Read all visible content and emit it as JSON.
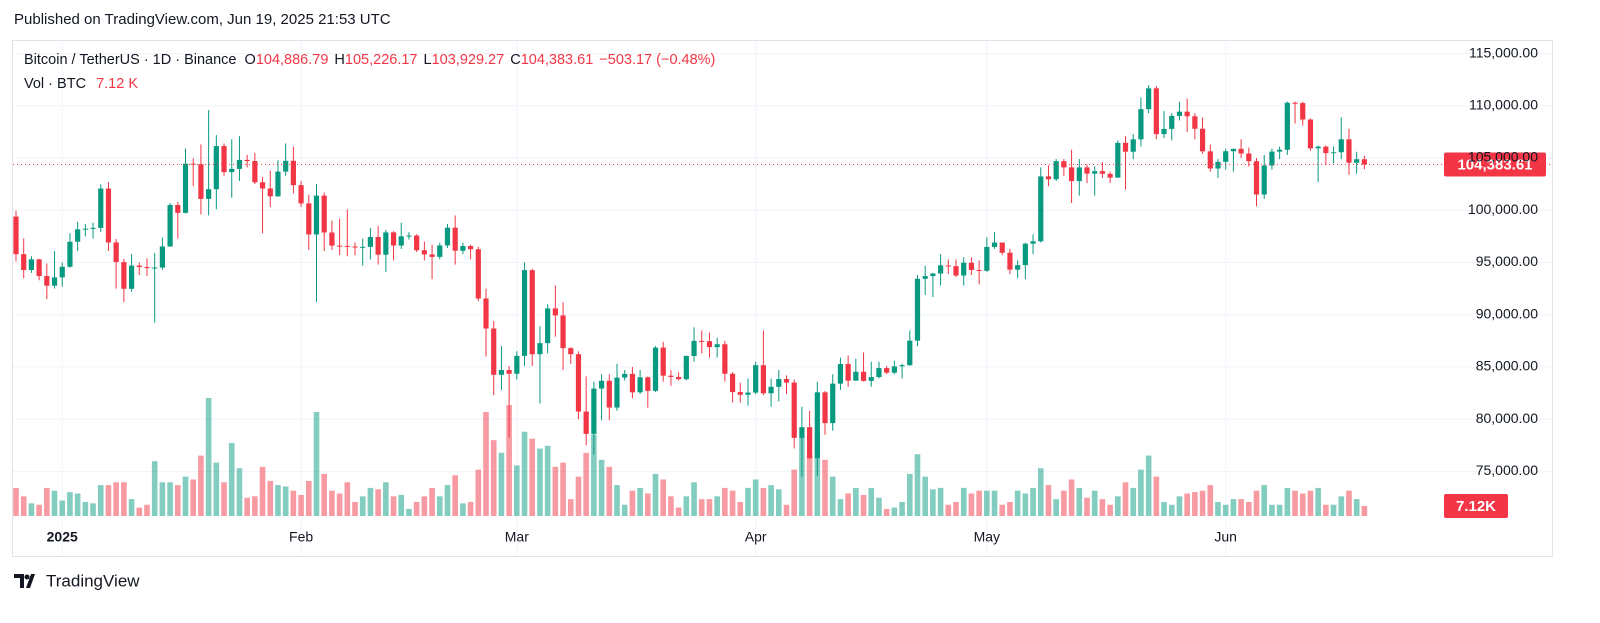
{
  "published": "Published on TradingView.com, Jun 19, 2025 21:53 UTC",
  "footer_logo": "TradingView",
  "chart_data": {
    "type": "candlestick",
    "header": {
      "symbol": "Bitcoin / TetherUS · 1D · Binance",
      "items": [
        {
          "key": "O",
          "value": "104,886.79"
        },
        {
          "key": "H",
          "value": "105,226.17"
        },
        {
          "key": "L",
          "value": "103,929.27"
        },
        {
          "key": "C",
          "value": "104,383.61"
        }
      ],
      "change": "−503.17 (−0.48%)",
      "volume_name": "Vol · BTC",
      "volume_value": "7.12 K"
    },
    "categories": [
      null,
      null,
      null,
      null,
      null,
      null,
      "2025",
      null,
      null,
      null,
      null,
      null,
      null,
      null,
      null,
      null,
      null,
      null,
      null,
      null,
      null,
      null,
      null,
      null,
      null,
      null,
      null,
      null,
      null,
      null,
      null,
      null,
      null,
      null,
      null,
      null,
      null,
      "Feb",
      null,
      null,
      null,
      null,
      null,
      null,
      null,
      null,
      null,
      null,
      null,
      null,
      null,
      null,
      null,
      null,
      null,
      null,
      null,
      null,
      null,
      null,
      null,
      null,
      null,
      null,
      null,
      "Mar",
      null,
      null,
      null,
      null,
      null,
      null,
      null,
      null,
      null,
      null,
      null,
      null,
      null,
      null,
      null,
      null,
      null,
      null,
      null,
      null,
      null,
      null,
      null,
      null,
      null,
      null,
      null,
      null,
      null,
      null,
      "Apr",
      null,
      null,
      null,
      null,
      null,
      null,
      null,
      null,
      null,
      null,
      null,
      null,
      null,
      null,
      null,
      null,
      null,
      null,
      null,
      null,
      null,
      null,
      null,
      null,
      null,
      null,
      null,
      null,
      null,
      "May",
      null,
      null,
      null,
      null,
      null,
      null,
      null,
      null,
      null,
      null,
      null,
      null,
      null,
      null,
      null,
      null,
      null,
      null,
      null,
      null,
      null,
      null,
      null,
      null,
      null,
      null,
      null,
      null,
      null,
      null,
      "Jun",
      null,
      null,
      null,
      null,
      null,
      null,
      null,
      null,
      null,
      null,
      null,
      null,
      null,
      null,
      null,
      null,
      null,
      null
    ],
    "open": [
      99400,
      95796,
      94284,
      95300,
      93700,
      92780,
      93576,
      94591,
      96984,
      98174,
      98236,
      98314,
      102078,
      96922,
      95043,
      92484,
      94701,
      94566,
      94488,
      94516,
      96534,
      100504,
      99756,
      104462,
      104408,
      101089,
      102016,
      106146,
      103653,
      103960,
      104819,
      104714,
      102682,
      102087,
      101332,
      103703,
      104735,
      102405,
      100655,
      97688,
      101405,
      97871,
      96615,
      96593,
      96529,
      96482,
      96500,
      97437,
      95748,
      97886,
      96623,
      97508,
      97580,
      96176,
      95774,
      95539,
      96635,
      98333,
      96125,
      96577,
      96273,
      91552,
      88680,
      84250,
      84708,
      84349,
      86064,
      94270,
      86220,
      87281,
      90606,
      89931,
      86802,
      86222,
      80734,
      78595,
      82932,
      83680,
      81115,
      83983,
      84338,
      82574,
      84010,
      82716,
      86854,
      84167,
      84043,
      83832,
      86054,
      87498,
      87471,
      86900,
      87177,
      84353,
      82597,
      82334,
      82548,
      85169,
      82485,
      83102,
      83843,
      83504,
      78214,
      79235,
      76271,
      82573,
      79626,
      83404,
      85287,
      83684,
      84542,
      83668,
      84033,
      84895,
      84450,
      85063,
      85174,
      87518,
      93441,
      93699,
      93944,
      94720,
      94647,
      93755,
      94978,
      94284,
      94207,
      96492,
      96911,
      95936,
      94315,
      94749,
      96802,
      97032,
      103241,
      102971,
      104696,
      104107,
      102791,
      104104,
      103508,
      103744,
      103490,
      103126,
      106455,
      105606,
      106792,
      109678,
      111673,
      107288,
      107791,
      109035,
      109440,
      108995,
      107802,
      105642,
      103998,
      104638,
      105652,
      105882,
      105432,
      104697,
      101509,
      104289,
      105615,
      105793,
      110295,
      110262,
      108686,
      105930,
      106090,
      105473,
      105555,
      106795,
      104551,
      104886.79
    ],
    "high": [
      99960,
      97300,
      95600,
      95350,
      94900,
      96100,
      95000,
      97800,
      98900,
      98700,
      98800,
      102500,
      102700,
      97250,
      95350,
      95800,
      95000,
      95400,
      95900,
      97400,
      100700,
      100800,
      105900,
      104980,
      106300,
      109588,
      107200,
      106400,
      106800,
      107100,
      105300,
      105500,
      103200,
      103800,
      104800,
      106400,
      106100,
      102800,
      101500,
      102500,
      101700,
      99000,
      99200,
      100100,
      96900,
      97300,
      98300,
      98500,
      98100,
      98000,
      98800,
      97900,
      97700,
      97000,
      96700,
      96900,
      98700,
      99500,
      96900,
      96700,
      96500,
      92500,
      89400,
      87000,
      85100,
      86500,
      95000,
      94400,
      88900,
      91000,
      92800,
      91200,
      86900,
      86500,
      84100,
      83600,
      84300,
      84300,
      85300,
      84700,
      85000,
      84700,
      84100,
      87000,
      87400,
      84700,
      84500,
      86100,
      88800,
      88500,
      88300,
      87800,
      87500,
      84500,
      83500,
      83900,
      85500,
      88500,
      83900,
      84700,
      84200,
      83800,
      81200,
      80800,
      83588,
      82700,
      84300,
      85900,
      86100,
      85800,
      86400,
      85500,
      85500,
      85100,
      85600,
      85300,
      88500,
      93800,
      94700,
      94000,
      95800,
      95300,
      95300,
      95500,
      95500,
      95200,
      97400,
      97900,
      96900,
      96300,
      95200,
      96900,
      97700,
      104100,
      104300,
      104900,
      104900,
      105800,
      104900,
      104400,
      104200,
      104600,
      103700,
      106700,
      107100,
      107300,
      110800,
      111980,
      111900,
      109500,
      109300,
      110400,
      110700,
      109300,
      108900,
      106300,
      104900,
      105900,
      105900,
      106800,
      106000,
      105000,
      105300,
      105900,
      106100,
      110400,
      110400,
      110400,
      108800,
      106200,
      106200,
      106100,
      108900,
      107800,
      105600,
      105226.17
    ],
    "low": [
      95137,
      93500,
      94000,
      93300,
      91500,
      92500,
      92700,
      94500,
      96100,
      97500,
      97300,
      97900,
      96100,
      92500,
      91200,
      92200,
      93800,
      93700,
      89256,
      94300,
      96500,
      97300,
      99700,
      102300,
      99600,
      99500,
      100100,
      103300,
      101200,
      102800,
      104100,
      102500,
      97800,
      100300,
      101300,
      103300,
      101600,
      100300,
      96200,
      91231,
      96100,
      96200,
      95700,
      95600,
      95700,
      94700,
      95300,
      94800,
      94100,
      95200,
      96300,
      97200,
      96000,
      95200,
      93400,
      95300,
      96400,
      94800,
      95800,
      95300,
      91300,
      86000,
      82300,
      82800,
      78258,
      83800,
      85100,
      85100,
      81500,
      86300,
      87900,
      84700,
      85300,
      80000,
      77500,
      76606,
      79900,
      79900,
      80800,
      83700,
      82000,
      82400,
      81100,
      82600,
      83600,
      83200,
      83700,
      83700,
      85500,
      86300,
      85900,
      85900,
      83600,
      81600,
      81600,
      81300,
      82400,
      82300,
      81200,
      81700,
      82400,
      77200,
      74508,
      76200,
      74600,
      78500,
      78900,
      82800,
      83100,
      83700,
      83600,
      83100,
      83900,
      84300,
      84300,
      83900,
      85100,
      87000,
      91900,
      91700,
      92800,
      93900,
      93600,
      92800,
      93800,
      92900,
      94100,
      96300,
      95700,
      93900,
      93500,
      93400,
      95800,
      96900,
      102300,
      102800,
      103300,
      100700,
      101400,
      102600,
      101400,
      103100,
      102600,
      103100,
      102000,
      104900,
      106100,
      109300,
      106800,
      106900,
      106700,
      108600,
      107500,
      106800,
      105400,
      103700,
      103100,
      103900,
      103700,
      105000,
      104200,
      100372,
      101100,
      103900,
      104900,
      105300,
      108300,
      108100,
      105700,
      102700,
      104300,
      104500,
      104900,
      103400,
      103500,
      103929.27
    ],
    "close": [
      95796,
      94284,
      95300,
      93700,
      92780,
      93576,
      94591,
      96984,
      98174,
      98236,
      98314,
      102078,
      96922,
      95043,
      92484,
      94701,
      94566,
      94488,
      94516,
      96534,
      100504,
      99756,
      104462,
      104408,
      101089,
      102016,
      106146,
      103653,
      103960,
      104819,
      104714,
      102682,
      102087,
      101332,
      103703,
      104735,
      102405,
      100655,
      97688,
      101405,
      97871,
      96615,
      96593,
      96529,
      96482,
      96500,
      97437,
      95748,
      97886,
      96623,
      97508,
      97580,
      96176,
      95774,
      95539,
      96635,
      98333,
      96125,
      96577,
      96273,
      91552,
      88680,
      84250,
      84708,
      84349,
      86064,
      94270,
      86220,
      87281,
      90606,
      89931,
      86802,
      86222,
      80734,
      78595,
      82932,
      83680,
      81115,
      83983,
      84338,
      82574,
      84010,
      82716,
      86854,
      84167,
      84043,
      83832,
      86054,
      87498,
      87471,
      86900,
      87177,
      84353,
      82597,
      82334,
      82548,
      85169,
      82485,
      83102,
      83843,
      83504,
      78214,
      79235,
      76271,
      82573,
      79626,
      83404,
      85287,
      83684,
      84542,
      83668,
      84033,
      84895,
      84450,
      85063,
      85174,
      87518,
      93441,
      93699,
      93944,
      94720,
      94647,
      93755,
      94978,
      94284,
      94207,
      96492,
      96911,
      95936,
      94315,
      94749,
      96802,
      97032,
      103241,
      102971,
      104696,
      104107,
      102791,
      104104,
      103508,
      103744,
      103490,
      103126,
      106455,
      105606,
      106792,
      109678,
      111673,
      107288,
      107791,
      109035,
      109440,
      108995,
      107802,
      105642,
      103998,
      104638,
      105652,
      105882,
      105432,
      104697,
      101509,
      104289,
      105615,
      105793,
      110295,
      110262,
      108686,
      105930,
      106090,
      105473,
      105555,
      106795,
      104551,
      104886.79,
      104383.61
    ],
    "volume": [
      20,
      14,
      9,
      8,
      20,
      18,
      11,
      17,
      16,
      10,
      9,
      22,
      22,
      24,
      24,
      12,
      6,
      8,
      39,
      24,
      24,
      22,
      28,
      26,
      43,
      84,
      38,
      24,
      52,
      34,
      13,
      14,
      35,
      25,
      22,
      21,
      18,
      15,
      25,
      74,
      30,
      18,
      16,
      24,
      10,
      14,
      20,
      19,
      24,
      14,
      15,
      5,
      10,
      14,
      20,
      14,
      22,
      29,
      9,
      10,
      33,
      74,
      54,
      45,
      79,
      36,
      60,
      55,
      48,
      50,
      35,
      38,
      12,
      28,
      45,
      58,
      40,
      35,
      22,
      8,
      18,
      20,
      16,
      30,
      26,
      14,
      6,
      14,
      24,
      12,
      12,
      14,
      20,
      18,
      10,
      20,
      26,
      20,
      22,
      19,
      8,
      33,
      56,
      44,
      60,
      40,
      28,
      12,
      16,
      20,
      15,
      20,
      13,
      5,
      6,
      10,
      30,
      44,
      28,
      19,
      20,
      8,
      10,
      20,
      16,
      18,
      18,
      18,
      8,
      10,
      18,
      16,
      20,
      34,
      22,
      12,
      18,
      26,
      20,
      13,
      18,
      12,
      8,
      14,
      24,
      20,
      33,
      43,
      28,
      10,
      8,
      14,
      16,
      17,
      18,
      22,
      10,
      8,
      12,
      12,
      10,
      18,
      22,
      8,
      8,
      20,
      18,
      16,
      18,
      20,
      8,
      8,
      14,
      18,
      12,
      7.12
    ],
    "up_color": "#089981",
    "down_color": "#f23645",
    "ylim": [
      67000,
      116300
    ],
    "yticks": [
      {
        "value": 75000,
        "label": "75,000.00"
      },
      {
        "value": 80000,
        "label": "80,000.00"
      },
      {
        "value": 85000,
        "label": "85,000.00"
      },
      {
        "value": 90000,
        "label": "90,000.00"
      },
      {
        "value": 95000,
        "label": "95,000.00"
      },
      {
        "value": 100000,
        "label": "100,000.00"
      },
      {
        "value": 105000,
        "label": "105,000.00"
      },
      {
        "value": 110000,
        "label": "110,000.00"
      },
      {
        "value": 115000,
        "label": "115,000.00"
      }
    ],
    "grid": true,
    "last_price_label": "104,383.61",
    "volume_tag": "7.12K"
  }
}
